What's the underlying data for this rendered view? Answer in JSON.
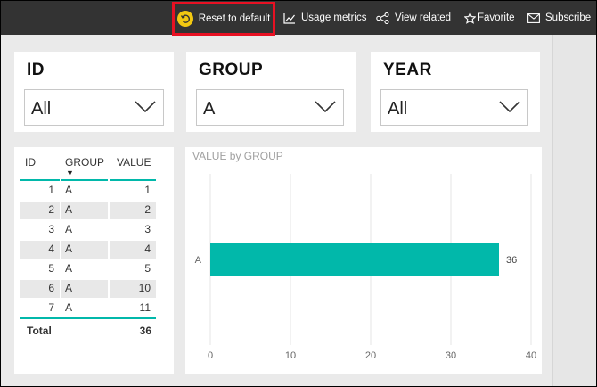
{
  "toolbar": {
    "reset_label": "Reset to default",
    "usage_label": "Usage metrics",
    "view_related_label": "View related",
    "favorite_label": "Favorite",
    "subscribe_label": "Subscribe",
    "reset_icon": "reset-icon",
    "accent": "#f2c811",
    "highlight": "#e81123"
  },
  "slicers": [
    {
      "title": "ID",
      "value": "All"
    },
    {
      "title": "GROUP",
      "value": "A"
    },
    {
      "title": "YEAR",
      "value": "All"
    }
  ],
  "table": {
    "headers": [
      "ID",
      "GROUP",
      "VALUE"
    ],
    "sort_indicator": "▼",
    "rows": [
      {
        "id": "1",
        "group": "A",
        "value": "1"
      },
      {
        "id": "2",
        "group": "A",
        "value": "2"
      },
      {
        "id": "3",
        "group": "A",
        "value": "3"
      },
      {
        "id": "4",
        "group": "A",
        "value": "4"
      },
      {
        "id": "5",
        "group": "A",
        "value": "5"
      },
      {
        "id": "6",
        "group": "A",
        "value": "10"
      },
      {
        "id": "7",
        "group": "A",
        "value": "11"
      }
    ],
    "total_label": "Total",
    "total_value": "36"
  },
  "chart_data": {
    "type": "bar",
    "orientation": "horizontal",
    "title": "VALUE by GROUP",
    "categories": [
      "A"
    ],
    "values": [
      36
    ],
    "data_labels": [
      "36"
    ],
    "xlim": [
      0,
      40
    ],
    "xticks": [
      0,
      10,
      20,
      30,
      40
    ],
    "grid": true,
    "bar_color": "#01b8aa"
  }
}
